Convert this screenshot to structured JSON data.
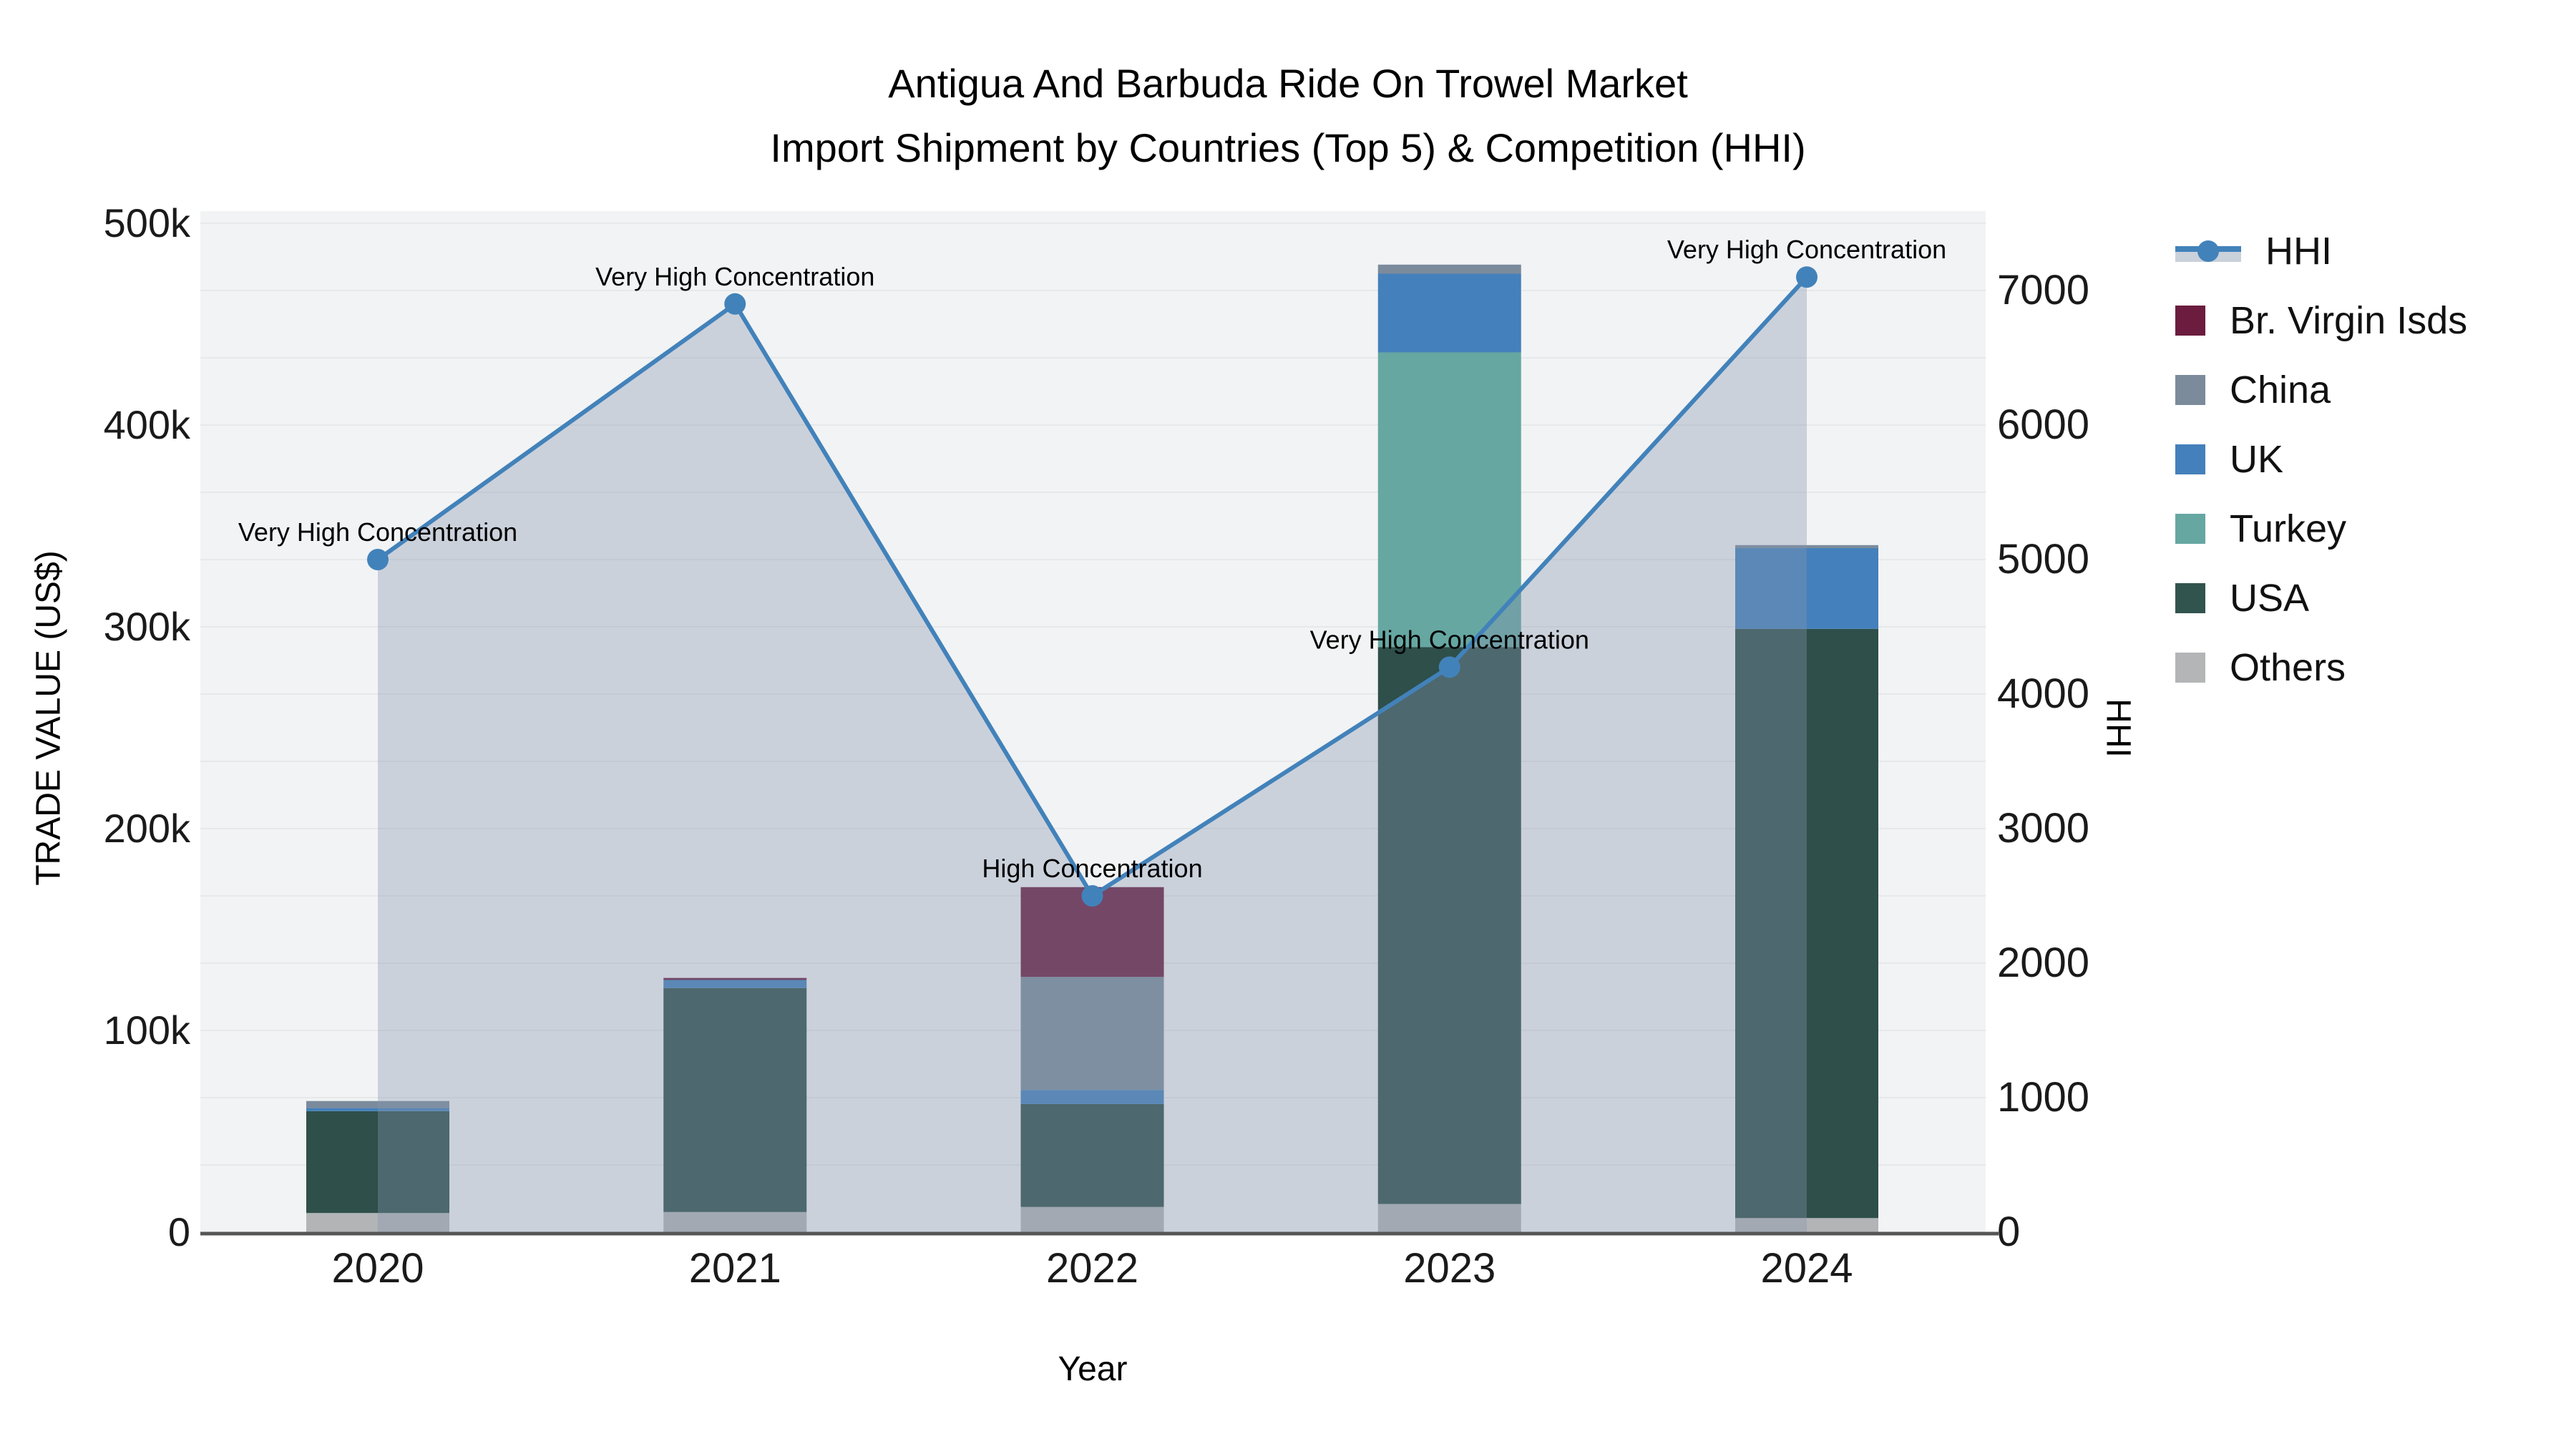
{
  "title": {
    "line1": "Antigua And Barbuda Ride On Trowel Market",
    "line2": "Import Shipment by Countries (Top 5) & Competition (HHI)"
  },
  "axes": {
    "x": {
      "title": "Year",
      "ticks": [
        "2020",
        "2021",
        "2022",
        "2023",
        "2024"
      ]
    },
    "y_left": {
      "title": "TRADE VALUE (US$)",
      "ticks": [
        "0",
        "100k",
        "200k",
        "300k",
        "400k",
        "500k"
      ],
      "tick_values": [
        0,
        100000,
        200000,
        300000,
        400000,
        500000
      ],
      "max": 500000
    },
    "y_right": {
      "title": "HHI",
      "ticks": [
        "0",
        "1000",
        "2000",
        "3000",
        "4000",
        "5000",
        "6000",
        "7000"
      ],
      "tick_values": [
        0,
        1000,
        2000,
        3000,
        4000,
        5000,
        6000,
        7000
      ],
      "max": 7000,
      "grid_step": 500
    }
  },
  "legend": {
    "items": [
      {
        "label": "HHI",
        "type": "line",
        "color": "#4282ba"
      },
      {
        "label": "Br. Virgin Isds",
        "type": "square",
        "color": "#6b1c3f"
      },
      {
        "label": "China",
        "type": "square",
        "color": "#7b8b9c"
      },
      {
        "label": "UK",
        "type": "square",
        "color": "#4480bb"
      },
      {
        "label": "Turkey",
        "type": "square",
        "color": "#66a7a2"
      },
      {
        "label": "USA",
        "type": "square",
        "color": "#32544e"
      },
      {
        "label": "Others",
        "type": "square",
        "color": "#b3b5b6"
      }
    ]
  },
  "colors": {
    "plot_bg": "#f2f3f4",
    "grid": "#e7e8ea",
    "axis_line": "#555555",
    "tick_text": "#1a1a1a",
    "annotation_text": "#000000",
    "hhi_line": "#4282ba",
    "hhi_area": "rgba(134,150,174,0.36)"
  },
  "chart_data": {
    "type": [
      "bar",
      "line"
    ],
    "title": "Antigua And Barbuda Ride On Trowel Market — Import Shipment by Countries (Top 5) & Competition (HHI)",
    "xlabel": "Year",
    "ylabel_left": "TRADE VALUE (US$)",
    "ylabel_right": "HHI",
    "ylim_left": [
      0,
      500000
    ],
    "ylim_right": [
      0,
      7000
    ],
    "grid": true,
    "legend_position": "right",
    "categories": [
      "2020",
      "2021",
      "2022",
      "2023",
      "2024"
    ],
    "stack_order_bottom_to_top": [
      "Others",
      "USA",
      "Turkey",
      "UK",
      "China",
      "Br. Virgin Isds"
    ],
    "series": [
      {
        "name": "Br. Virgin Isds",
        "type": "bar",
        "color": "#6b1c3f",
        "values": [
          0,
          1000,
          44500,
          0,
          0
        ]
      },
      {
        "name": "China",
        "type": "bar",
        "color": "#7b8b9c",
        "values": [
          3500,
          0,
          56000,
          4500,
          1500
        ]
      },
      {
        "name": "UK",
        "type": "bar",
        "color": "#4480bb",
        "values": [
          1500,
          4000,
          7000,
          39000,
          40000
        ]
      },
      {
        "name": "Turkey",
        "type": "bar",
        "color": "#66a7a2",
        "values": [
          0,
          0,
          0,
          146000,
          0
        ]
      },
      {
        "name": "USA",
        "type": "bar",
        "color": "#2e4f4a",
        "values": [
          50500,
          111000,
          51000,
          276000,
          292000
        ]
      },
      {
        "name": "Others",
        "type": "bar",
        "color": "#b2b4b6",
        "values": [
          9500,
          10000,
          12500,
          14000,
          7000
        ]
      },
      {
        "name": "HHI",
        "type": "line",
        "axis": "right",
        "color": "#4282ba",
        "values": [
          5000,
          6900,
          2500,
          4200,
          7100
        ]
      }
    ],
    "bar_totals": [
      65000,
      126000,
      171000,
      479500,
      340500
    ],
    "annotations": [
      {
        "x": "2020",
        "text": "Very High Concentration"
      },
      {
        "x": "2021",
        "text": "Very High Concentration"
      },
      {
        "x": "2022",
        "text": "High Concentration"
      },
      {
        "x": "2023",
        "text": "Very High Concentration"
      },
      {
        "x": "2024",
        "text": "Very High Concentration"
      }
    ]
  }
}
